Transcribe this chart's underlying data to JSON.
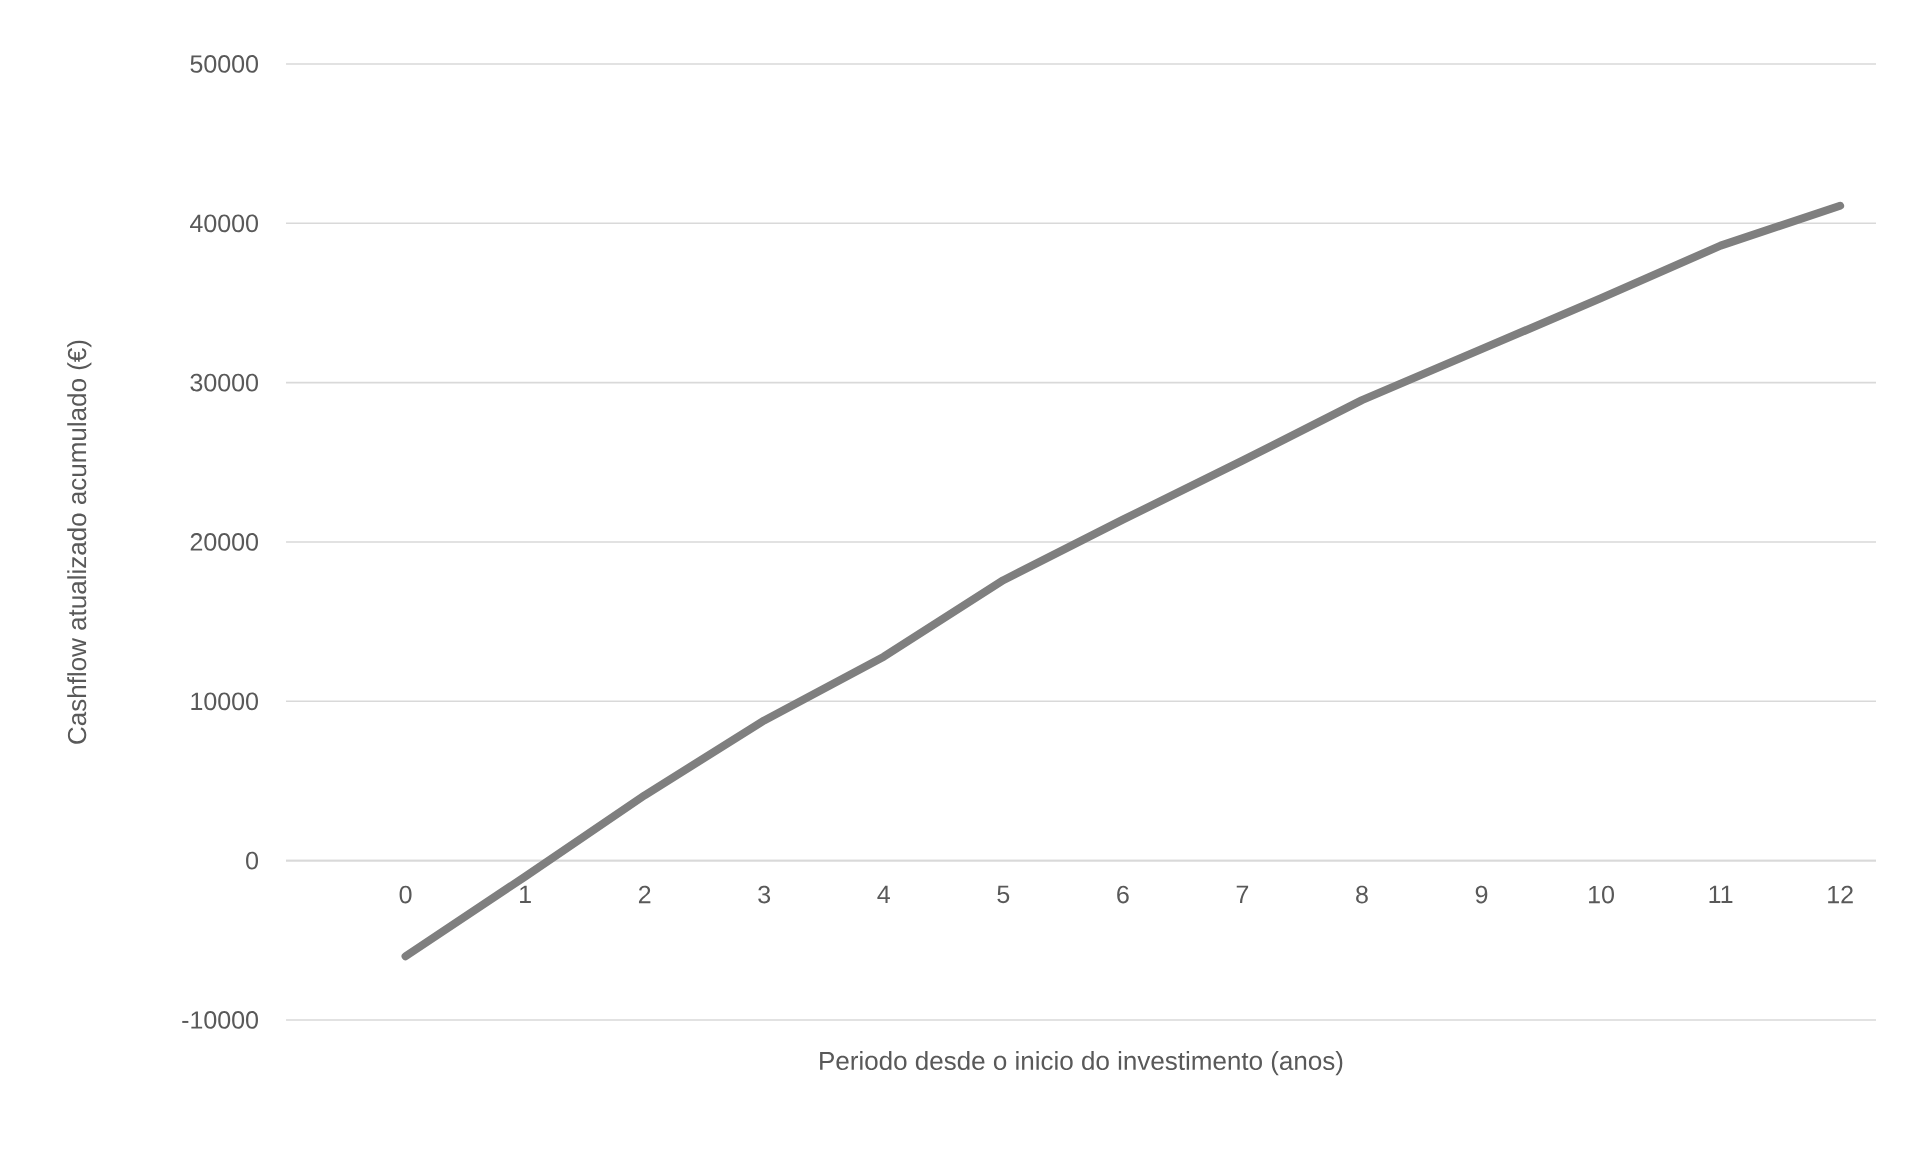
{
  "chart_data": {
    "type": "line",
    "xlabel": "Periodo desde o inicio do investimento (anos)",
    "ylabel": "Cashflow atualizado acumulado (€)",
    "x": [
      0,
      1,
      2,
      3,
      4,
      5,
      6,
      7,
      8,
      9,
      10,
      11,
      12
    ],
    "series": [
      {
        "color": "#7f7f7f",
        "values": [
          -6000,
          -1000,
          4100,
          8800,
          12800,
          17600,
          21400,
          25100,
          28900,
          32100,
          35300,
          38600,
          41100
        ]
      }
    ],
    "xlim": [
      -1,
      12.3
    ],
    "xticks": [
      0,
      1,
      2,
      3,
      4,
      5,
      6,
      7,
      8,
      9,
      10,
      11,
      12
    ],
    "ylim": [
      -10000,
      50000
    ],
    "yticks": [
      -10000,
      0,
      10000,
      20000,
      30000,
      40000,
      50000
    ],
    "grid": "y",
    "legend": false,
    "marker": "none",
    "line_style": "solid"
  }
}
